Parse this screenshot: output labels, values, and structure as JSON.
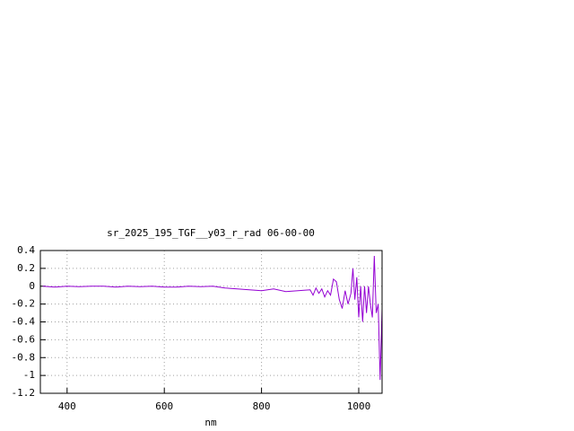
{
  "chart_data": {
    "type": "line",
    "title": "sr_2025_195_TGF__y03_r_rad 06-00-00",
    "x_label": "nm",
    "x": [
      350,
      375,
      400,
      425,
      450,
      475,
      500,
      525,
      550,
      575,
      600,
      625,
      650,
      675,
      700,
      725,
      750,
      775,
      800,
      825,
      850,
      875,
      900,
      906,
      912,
      918,
      924,
      930,
      936,
      942,
      948,
      954,
      960,
      966,
      972,
      978,
      984,
      988,
      992,
      996,
      1000,
      1004,
      1008,
      1012,
      1016,
      1020,
      1024,
      1028,
      1032,
      1036,
      1040,
      1044,
      1048
    ],
    "series": [
      {
        "name": "sr_2025_195_TGF__y03_r_rad",
        "color": "#9400d3",
        "values": [
          0.0,
          -0.01,
          0.0,
          -0.005,
          0.0,
          0.0,
          -0.01,
          0.0,
          -0.005,
          0.0,
          -0.01,
          -0.01,
          0.0,
          -0.005,
          0.0,
          -0.02,
          -0.03,
          -0.04,
          -0.05,
          -0.03,
          -0.06,
          -0.05,
          -0.04,
          -0.1,
          -0.02,
          -0.08,
          -0.03,
          -0.12,
          -0.05,
          -0.1,
          0.08,
          0.05,
          -0.15,
          -0.25,
          -0.05,
          -0.2,
          -0.08,
          0.2,
          -0.15,
          0.1,
          -0.35,
          0.0,
          -0.4,
          0.0,
          -0.3,
          0.0,
          -0.2,
          -0.35,
          0.34,
          -0.3,
          -0.2,
          -1.05,
          -0.25
        ]
      }
    ],
    "xlim": [
      345,
      1048
    ],
    "ylim": [
      -1.2,
      0.4
    ],
    "xticks": [
      400,
      600,
      800,
      1000
    ],
    "yticks": [
      0.4,
      0.2,
      0,
      -0.2,
      -0.4,
      -0.6,
      -0.8,
      -1,
      -1.2
    ],
    "grid": true
  }
}
